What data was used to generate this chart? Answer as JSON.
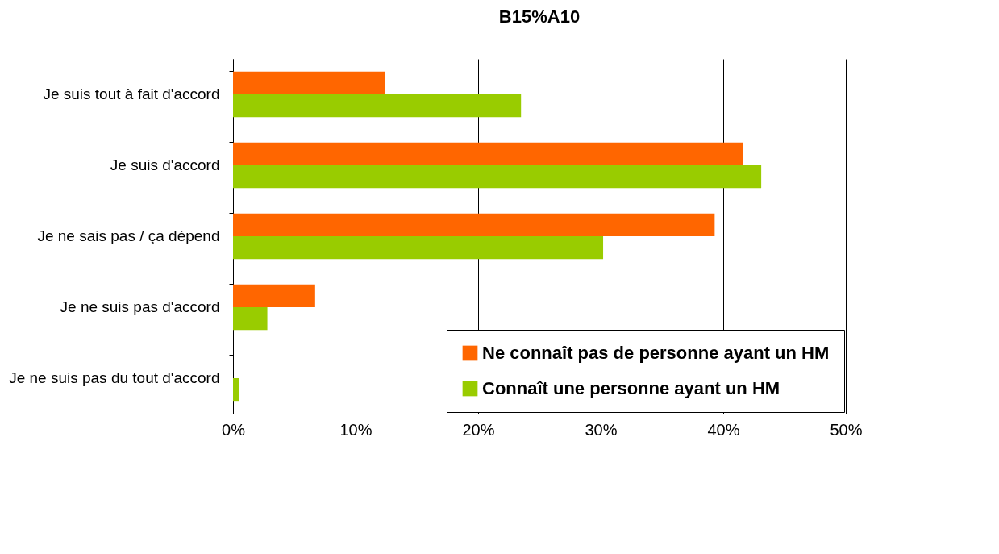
{
  "chart_data": {
    "type": "bar",
    "orientation": "horizontal",
    "title": "B15%A10",
    "categories": [
      "Je suis tout à fait d'accord",
      "Je suis d'accord",
      "Je ne sais pas / ça dépend",
      "Je ne suis pas d'accord",
      "Je ne suis pas du tout d'accord"
    ],
    "series": [
      {
        "name": "Ne connaît pas de personne ayant un HM",
        "color": "#ff6600",
        "values": [
          12.4,
          41.6,
          39.3,
          6.7,
          0
        ]
      },
      {
        "name": "Connaît une personne ayant un HM",
        "color": "#99cc00",
        "values": [
          23.5,
          43.1,
          30.2,
          2.8,
          0.5
        ]
      }
    ],
    "xlim": [
      0,
      50
    ],
    "xticks": [
      {
        "value": 0,
        "label": "0%"
      },
      {
        "value": 10,
        "label": "10%"
      },
      {
        "value": 20,
        "label": "20%"
      },
      {
        "value": 30,
        "label": "30%"
      },
      {
        "value": 40,
        "label": "40%"
      },
      {
        "value": 50,
        "label": "50%"
      }
    ],
    "grid": "x",
    "legend": "bottom right"
  }
}
